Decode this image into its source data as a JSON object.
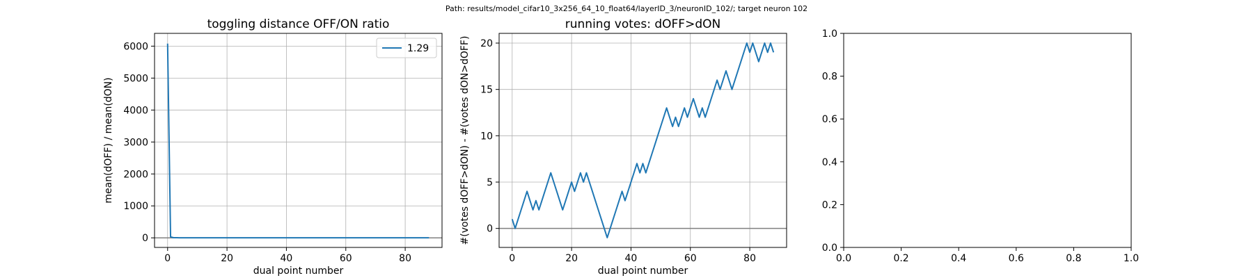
{
  "suptitle": "Path: results/model_cifar10_3x256_64_10_float64/layerID_3/neuronID_102/; target neuron 102",
  "chart_data": [
    {
      "type": "line",
      "title": "toggling distance OFF/ON ratio",
      "xlabel": "dual point number",
      "ylabel": "mean(dOFF) / mean(dON)",
      "xlim": [
        -4.4,
        92.4
      ],
      "ylim": [
        -300,
        6400
      ],
      "xticks": [
        "0",
        "20",
        "40",
        "60",
        "80"
      ],
      "yticks": [
        "0",
        "1000",
        "2000",
        "3000",
        "4000",
        "5000",
        "6000"
      ],
      "grid": true,
      "legend_position": "upper right",
      "hline_y": 0,
      "hline_color": "#808080",
      "series": [
        {
          "name": "1.29",
          "color": "#1f77b4",
          "x": [
            0,
            1,
            2,
            3,
            4,
            5,
            6,
            7,
            8,
            9,
            10,
            11,
            12,
            13,
            14,
            15,
            16,
            17,
            18,
            19,
            20,
            21,
            22,
            23,
            24,
            25,
            26,
            27,
            28,
            29,
            30,
            31,
            32,
            33,
            34,
            35,
            36,
            37,
            38,
            39,
            40,
            41,
            42,
            43,
            44,
            45,
            46,
            47,
            48,
            49,
            50,
            51,
            52,
            53,
            54,
            55,
            56,
            57,
            58,
            59,
            60,
            61,
            62,
            63,
            64,
            65,
            66,
            67,
            68,
            69,
            70,
            71,
            72,
            73,
            74,
            75,
            76,
            77,
            78,
            79,
            80,
            81,
            82,
            83,
            84,
            85,
            86,
            87,
            88
          ],
          "y": [
            6080,
            30,
            5,
            4,
            3,
            3,
            3,
            3,
            2,
            2,
            2,
            2,
            2,
            2,
            2,
            2,
            2,
            2,
            2,
            2,
            2,
            2,
            2,
            2,
            2,
            2,
            2,
            2,
            2,
            2,
            2,
            2,
            2,
            2,
            2,
            2,
            2,
            2,
            2,
            2,
            2,
            2,
            2,
            2,
            2,
            2,
            2,
            2,
            2,
            2,
            2,
            2,
            2,
            2,
            2,
            2,
            2,
            2,
            2,
            2,
            2,
            2,
            2,
            2,
            2,
            2,
            2,
            2,
            2,
            2,
            2,
            2,
            2,
            2,
            2,
            2,
            2,
            2,
            2,
            2,
            2,
            2,
            2,
            2,
            2,
            2,
            2,
            2,
            1.29
          ]
        }
      ]
    },
    {
      "type": "line",
      "title": "running votes: dOFF>dON",
      "xlabel": "dual point number",
      "ylabel": "#(votes dOFF>dON) - #(votes dON>dOFF)",
      "xlim": [
        -4.4,
        92.4
      ],
      "ylim": [
        -2.05,
        21.05
      ],
      "xticks": [
        "0",
        "20",
        "40",
        "60",
        "80"
      ],
      "yticks": [
        "0",
        "5",
        "10",
        "15",
        "20"
      ],
      "grid": true,
      "hline_y": 0,
      "hline_color": "#808080",
      "series": [
        {
          "color": "#1f77b4",
          "x": [
            0,
            1,
            2,
            3,
            4,
            5,
            6,
            7,
            8,
            9,
            10,
            11,
            12,
            13,
            14,
            15,
            16,
            17,
            18,
            19,
            20,
            21,
            22,
            23,
            24,
            25,
            26,
            27,
            28,
            29,
            30,
            31,
            32,
            33,
            34,
            35,
            36,
            37,
            38,
            39,
            40,
            41,
            42,
            43,
            44,
            45,
            46,
            47,
            48,
            49,
            50,
            51,
            52,
            53,
            54,
            55,
            56,
            57,
            58,
            59,
            60,
            61,
            62,
            63,
            64,
            65,
            66,
            67,
            68,
            69,
            70,
            71,
            72,
            73,
            74,
            75,
            76,
            77,
            78,
            79,
            80,
            81,
            82,
            83,
            84,
            85,
            86,
            87,
            88
          ],
          "y": [
            1,
            0,
            1,
            2,
            3,
            4,
            3,
            2,
            3,
            2,
            3,
            4,
            5,
            6,
            5,
            4,
            3,
            2,
            3,
            4,
            5,
            4,
            5,
            6,
            5,
            6,
            5,
            4,
            3,
            2,
            1,
            0,
            -1,
            0,
            1,
            2,
            3,
            4,
            3,
            4,
            5,
            6,
            7,
            6,
            7,
            6,
            7,
            8,
            9,
            10,
            11,
            12,
            13,
            12,
            11,
            12,
            11,
            12,
            13,
            12,
            13,
            14,
            13,
            12,
            13,
            12,
            13,
            14,
            15,
            16,
            15,
            16,
            17,
            16,
            15,
            16,
            17,
            18,
            19,
            20,
            19,
            20,
            19,
            18,
            19,
            20,
            19,
            20,
            19
          ]
        }
      ]
    },
    {
      "type": "line",
      "title": "",
      "xlim": [
        0,
        1
      ],
      "ylim": [
        0,
        1
      ],
      "xticks": [
        "0.0",
        "0.2",
        "0.4",
        "0.6",
        "0.8",
        "1.0"
      ],
      "yticks": [
        "0.0",
        "0.2",
        "0.4",
        "0.6",
        "0.8",
        "1.0"
      ],
      "grid": false,
      "series": []
    }
  ]
}
